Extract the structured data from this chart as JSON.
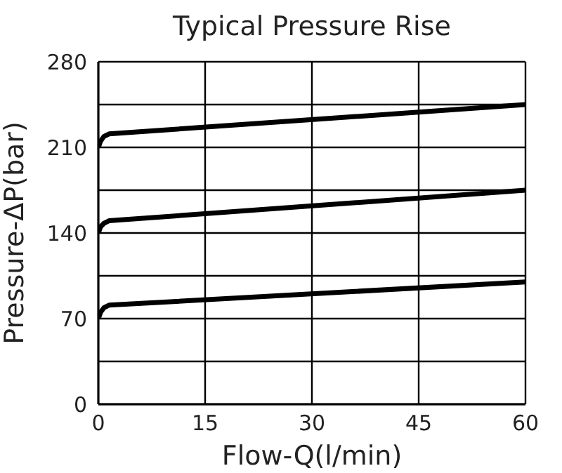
{
  "chart_data": {
    "type": "line",
    "title": "Typical Pressure Rise",
    "xlabel": "Flow-Q(l/min)",
    "ylabel": "Pressure-ΔP(bar)",
    "series": [
      {
        "color": "#000000",
        "x": [
          0,
          0.3,
          0.8,
          1.5,
          60
        ],
        "values": [
          210,
          215,
          219,
          221,
          245
        ]
      },
      {
        "color": "#000000",
        "x": [
          0,
          0.3,
          0.8,
          1.5,
          60
        ],
        "values": [
          140,
          145,
          148,
          150,
          175
        ]
      },
      {
        "color": "#000000",
        "x": [
          0,
          0.3,
          0.8,
          1.5,
          60
        ],
        "values": [
          70,
          75,
          79,
          81,
          100
        ]
      }
    ],
    "xlim": [
      0,
      60
    ],
    "xticks": [
      0,
      15,
      30,
      45,
      60
    ],
    "ylim": [
      0,
      280
    ],
    "yticks": [
      0,
      {
        "value": 35,
        "label": null
      },
      70,
      {
        "value": 105,
        "label": null
      },
      140,
      {
        "value": 175,
        "label": null
      },
      210,
      {
        "value": 245,
        "label": null
      },
      280
    ],
    "grid": true,
    "legend": false,
    "marker": "none",
    "line_style": "solid"
  }
}
